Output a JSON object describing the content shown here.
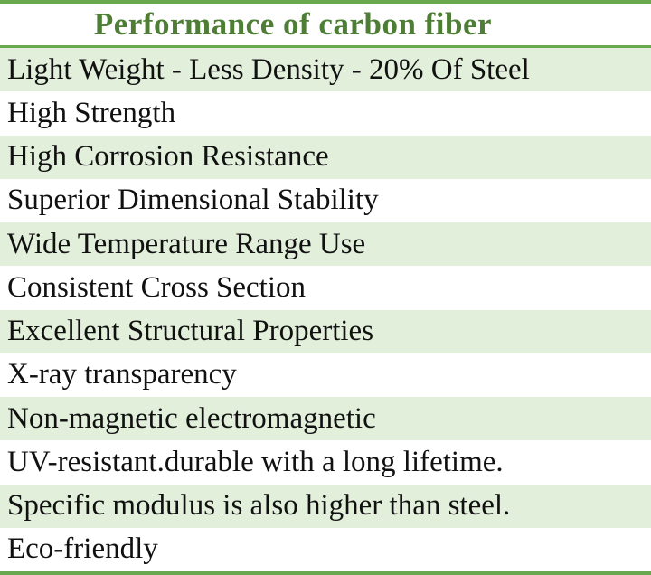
{
  "table": {
    "title": "Performance of carbon fiber",
    "rows": [
      "Light Weight - Less Density - 20% Of Steel",
      "High Strength",
      "High Corrosion Resistance",
      "Superior Dimensional Stability",
      "Wide Temperature Range Use",
      "Consistent Cross Section",
      "Excellent Structural Properties",
      "X-ray transparency",
      "Non-magnetic electromagnetic",
      "UV-resistant.durable with a long lifetime.",
      "Specific modulus is also higher than steel.",
      "Eco-friendly"
    ]
  },
  "colors": {
    "title_green": "#4e7e35",
    "line_green": "#6aa84f",
    "row_green": "#e2efda",
    "row_white": "#ffffff",
    "text": "#111111"
  }
}
